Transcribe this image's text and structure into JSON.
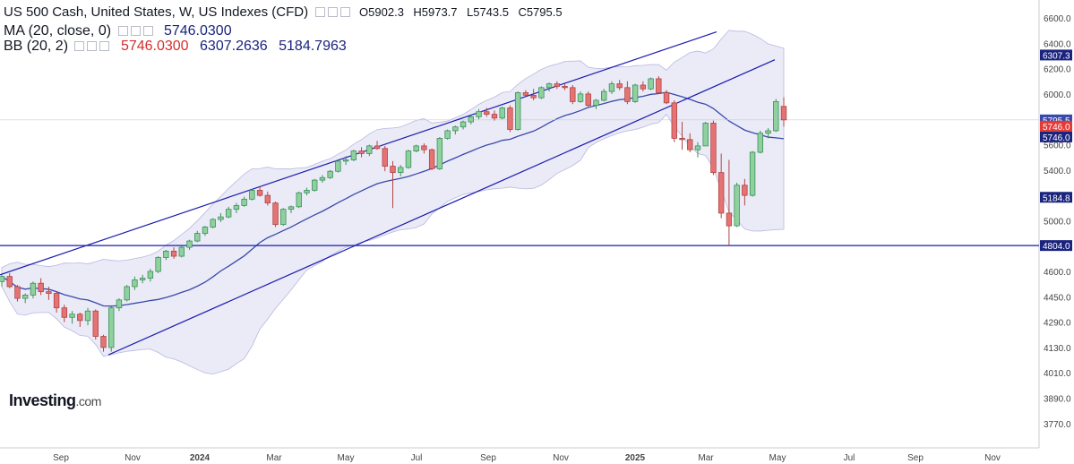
{
  "header": {
    "title": "US 500 Cash, United States, W, US Indexes (CFD)",
    "ohlc": {
      "o": "O5902.3",
      "h": "H5973.7",
      "l": "L5743.5",
      "c": "C5795.5"
    },
    "ma": {
      "label": "MA (20, close, 0)",
      "value": "5746.0300"
    },
    "bb": {
      "label": "BB (20, 2)",
      "mid": "5746.0300",
      "upper": "6307.2636",
      "lower": "5184.7963"
    }
  },
  "logo": {
    "main": "Investing",
    "suffix": ".com"
  },
  "colors": {
    "up": "#26a69a",
    "up_fill": "#a5d6a7",
    "down": "#e57373",
    "ma": "#3949ab",
    "band": "#e8e8f6",
    "channel": "#1a1ab0",
    "support": "#1a1ab0"
  },
  "chart_data": {
    "type": "candlestick",
    "x_axis_labels": [
      "Sep",
      "Nov",
      "2024",
      "Mar",
      "May",
      "Jul",
      "Sep",
      "Nov",
      "2025",
      "Mar",
      "May",
      "Jul",
      "Sep",
      "Nov"
    ],
    "y_ticks": [
      "6600.0",
      "6400.0",
      "6200.0",
      "6000.0",
      "5800.0",
      "5600.0",
      "5400.0",
      "5200.0",
      "5000.0",
      "4800.0",
      "4600.0",
      "4450.0",
      "4290.0",
      "4130.0",
      "4010.0",
      "3890.0",
      "3770.0"
    ],
    "y_tick_values": [
      6600,
      6400,
      6200,
      6000,
      5800,
      5600,
      5400,
      5200,
      5000,
      4800,
      4600,
      4450,
      4290,
      4130,
      4010,
      3890,
      3770
    ],
    "price_labels": [
      {
        "text": "6307.3",
        "value": 6307.3,
        "color": "#1a237e"
      },
      {
        "text": "5795.5",
        "value": 5795.5,
        "color": "#3949ab"
      },
      {
        "text": "5746.0",
        "value": 5746.0,
        "color": "#e53935"
      },
      {
        "text": "5746.0",
        "value": 5746.0,
        "color": "#1a237e",
        "stack": 1
      },
      {
        "text": "5184.8",
        "value": 5184.8,
        "color": "#1a237e"
      },
      {
        "text": "4804.0",
        "value": 4804.0,
        "color": "#1a237e"
      }
    ],
    "candles": [
      [
        4540,
        4580,
        4510,
        4570
      ],
      [
        4570,
        4590,
        4500,
        4510
      ],
      [
        4510,
        4520,
        4420,
        4440
      ],
      [
        4440,
        4470,
        4410,
        4460
      ],
      [
        4460,
        4540,
        4440,
        4530
      ],
      [
        4530,
        4560,
        4460,
        4480
      ],
      [
        4480,
        4510,
        4430,
        4470
      ],
      [
        4470,
        4480,
        4350,
        4380
      ],
      [
        4380,
        4400,
        4290,
        4320
      ],
      [
        4320,
        4360,
        4280,
        4340
      ],
      [
        4340,
        4350,
        4260,
        4300
      ],
      [
        4300,
        4380,
        4270,
        4360
      ],
      [
        4360,
        4370,
        4180,
        4200
      ],
      [
        4200,
        4210,
        4110,
        4130
      ],
      [
        4130,
        4390,
        4110,
        4380
      ],
      [
        4380,
        4440,
        4360,
        4430
      ],
      [
        4430,
        4520,
        4420,
        4510
      ],
      [
        4510,
        4570,
        4490,
        4550
      ],
      [
        4550,
        4580,
        4530,
        4560
      ],
      [
        4560,
        4620,
        4540,
        4600
      ],
      [
        4600,
        4720,
        4590,
        4710
      ],
      [
        4710,
        4770,
        4690,
        4760
      ],
      [
        4760,
        4790,
        4700,
        4720
      ],
      [
        4720,
        4800,
        4710,
        4790
      ],
      [
        4790,
        4850,
        4770,
        4840
      ],
      [
        4840,
        4920,
        4830,
        4900
      ],
      [
        4900,
        4960,
        4880,
        4950
      ],
      [
        4950,
        5020,
        4940,
        5010
      ],
      [
        5010,
        5060,
        4990,
        5030
      ],
      [
        5030,
        5110,
        5020,
        5090
      ],
      [
        5090,
        5140,
        5060,
        5120
      ],
      [
        5120,
        5190,
        5110,
        5170
      ],
      [
        5170,
        5250,
        5160,
        5240
      ],
      [
        5240,
        5270,
        5190,
        5200
      ],
      [
        5200,
        5230,
        5120,
        5140
      ],
      [
        5140,
        5150,
        4950,
        4970
      ],
      [
        4970,
        5100,
        4960,
        5090
      ],
      [
        5090,
        5120,
        5060,
        5110
      ],
      [
        5110,
        5230,
        5100,
        5220
      ],
      [
        5220,
        5260,
        5200,
        5240
      ],
      [
        5240,
        5330,
        5230,
        5320
      ],
      [
        5320,
        5360,
        5300,
        5340
      ],
      [
        5340,
        5400,
        5330,
        5390
      ],
      [
        5390,
        5480,
        5380,
        5470
      ],
      [
        5470,
        5510,
        5440,
        5480
      ],
      [
        5480,
        5560,
        5470,
        5550
      ],
      [
        5550,
        5580,
        5500,
        5530
      ],
      [
        5530,
        5600,
        5510,
        5590
      ],
      [
        5590,
        5630,
        5560,
        5570
      ],
      [
        5570,
        5590,
        5390,
        5430
      ],
      [
        5430,
        5470,
        5100,
        5380
      ],
      [
        5380,
        5440,
        5350,
        5420
      ],
      [
        5420,
        5560,
        5410,
        5550
      ],
      [
        5550,
        5600,
        5540,
        5590
      ],
      [
        5590,
        5610,
        5530,
        5560
      ],
      [
        5560,
        5570,
        5400,
        5410
      ],
      [
        5410,
        5660,
        5400,
        5650
      ],
      [
        5650,
        5720,
        5640,
        5710
      ],
      [
        5710,
        5750,
        5680,
        5740
      ],
      [
        5740,
        5790,
        5720,
        5780
      ],
      [
        5780,
        5830,
        5760,
        5820
      ],
      [
        5820,
        5880,
        5800,
        5860
      ],
      [
        5860,
        5890,
        5820,
        5840
      ],
      [
        5840,
        5870,
        5790,
        5810
      ],
      [
        5810,
        5900,
        5800,
        5890
      ],
      [
        5890,
        5910,
        5700,
        5720
      ],
      [
        5720,
        6020,
        5710,
        6010
      ],
      [
        6010,
        6030,
        5980,
        5990
      ],
      [
        5990,
        6040,
        5950,
        5970
      ],
      [
        5970,
        6060,
        5960,
        6050
      ],
      [
        6050,
        6090,
        6020,
        6080
      ],
      [
        6080,
        6100,
        6040,
        6060
      ],
      [
        6060,
        6080,
        6030,
        6050
      ],
      [
        6050,
        6070,
        5920,
        5940
      ],
      [
        5940,
        6020,
        5930,
        6000
      ],
      [
        6000,
        6020,
        5900,
        5910
      ],
      [
        5910,
        5960,
        5880,
        5950
      ],
      [
        5950,
        6040,
        5940,
        6020
      ],
      [
        6020,
        6100,
        6000,
        6080
      ],
      [
        6080,
        6110,
        6030,
        6050
      ],
      [
        6050,
        6100,
        5920,
        5940
      ],
      [
        5940,
        6080,
        5930,
        6070
      ],
      [
        6070,
        6100,
        6020,
        6040
      ],
      [
        6040,
        6130,
        6030,
        6120
      ],
      [
        6120,
        6140,
        6000,
        6010
      ],
      [
        6010,
        6030,
        5920,
        5930
      ],
      [
        5930,
        5950,
        5620,
        5650
      ],
      [
        5650,
        5780,
        5560,
        5640
      ],
      [
        5640,
        5690,
        5540,
        5560
      ],
      [
        5560,
        5620,
        5500,
        5590
      ],
      [
        5590,
        5780,
        5590,
        5770
      ],
      [
        5770,
        5790,
        5360,
        5380
      ],
      [
        5380,
        5530,
        5020,
        5060
      ],
      [
        5060,
        5480,
        4804,
        4960
      ],
      [
        4960,
        5300,
        4950,
        5280
      ],
      [
        5280,
        5330,
        5120,
        5200
      ],
      [
        5200,
        5550,
        5190,
        5540
      ],
      [
        5540,
        5710,
        5530,
        5690
      ],
      [
        5690,
        5730,
        5650,
        5710
      ],
      [
        5710,
        5960,
        5700,
        5940
      ],
      [
        5902.3,
        5973.7,
        5743.5,
        5795.5
      ]
    ],
    "support_level": 4804.0
  }
}
